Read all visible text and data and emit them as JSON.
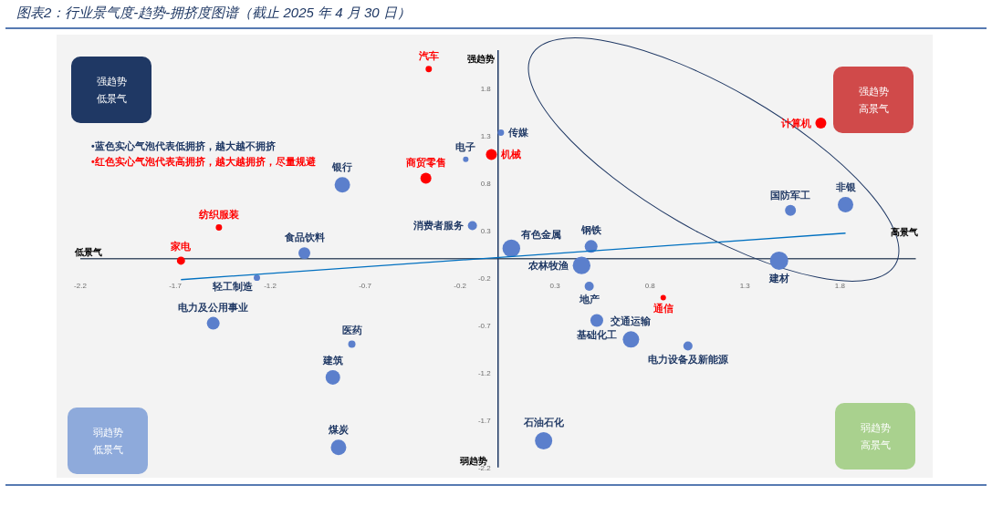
{
  "chart_data": {
    "type": "bubble",
    "title": "图表2：行业景气度-趋势-拥挤度图谱（截止 2025 年 4 月 30 日）",
    "xlim": [
      -2.2,
      2.2
    ],
    "ylim": [
      -2.2,
      2.2
    ],
    "xticks": [
      -2.2,
      -1.7,
      -1.2,
      -0.7,
      -0.2,
      0.3,
      0.8,
      1.3,
      1.8
    ],
    "yticks": [
      -2.2,
      -1.7,
      -1.2,
      -0.7,
      -0.2,
      0.3,
      0.8,
      1.3,
      1.8
    ],
    "grid": false,
    "series": [
      {
        "type": "bubble",
        "color": "#5b7fcc",
        "x": [
          0.015,
          -0.17,
          -0.82,
          -0.135,
          0.07,
          0.49,
          0.44,
          1.48,
          1.54,
          1.83,
          -1.02,
          -1.27,
          -1.5,
          -0.77,
          -0.87,
          -0.84,
          0.48,
          0.52,
          0.7,
          1.0,
          0.24
        ],
        "values": [
          1.33,
          1.05,
          0.78,
          0.35,
          0.11,
          0.13,
          -0.07,
          -0.02,
          0.51,
          0.57,
          0.06,
          -0.2,
          -0.68,
          -0.9,
          -1.25,
          -1.99,
          -0.29,
          -0.65,
          -0.85,
          -0.92,
          -1.92
        ],
        "sizes": [
          0.12,
          0.09,
          0.72,
          0.25,
          0.94,
          0.49,
          0.94,
          1,
          0.36,
          0.72,
          0.42,
          0.12,
          0.49,
          0.16,
          0.64,
          0.72,
          0.25,
          0.49,
          0.81,
          0.25,
          0.9
        ]
      },
      {
        "type": "bubble",
        "color": "#ff0000",
        "x": [
          -0.365,
          -0.035,
          -0.38,
          1.7,
          -1.47,
          -1.67,
          0.87
        ],
        "values": [
          2.0,
          1.1,
          0.85,
          1.43,
          0.33,
          -0.02,
          -0.41
        ],
        "sizes": [
          0.12,
          0.36,
          0.36,
          0.36,
          0.12,
          0.2,
          0.09
        ]
      },
      {
        "type": "line",
        "color": "#0070c0",
        "x": [
          -1.67,
          1.83
        ],
        "values": [
          -0.22,
          0.27
        ]
      }
    ],
    "annotations": [
      "低景气",
      "高景气",
      "强趋势",
      "弱趋势",
      "强趋势低景气",
      "强趋势高景气",
      "弱趋势低景气",
      "弱趋势高景气",
      "•蓝色实心气泡代表低拥挤，越大越不拥挤",
      "•红色实心气泡代表高拥挤，越大越拥挤，尽量规避",
      {
        "text": "传媒",
        "x": 0.015,
        "y": 1.33
      },
      {
        "text": "电子",
        "x": -0.17,
        "y": 1.05
      },
      {
        "text": "银行",
        "x": -0.82,
        "y": 0.78
      },
      {
        "text": "消费者服务",
        "x": -0.135,
        "y": 0.35
      },
      {
        "text": "有色金属",
        "x": 0.07,
        "y": 0.11
      },
      {
        "text": "钢铁",
        "x": 0.49,
        "y": 0.13
      },
      {
        "text": "农林牧渔",
        "x": 0.44,
        "y": -0.07
      },
      {
        "text": "建材",
        "x": 1.48,
        "y": -0.02
      },
      {
        "text": "国防军工",
        "x": 1.54,
        "y": 0.51
      },
      {
        "text": "非银",
        "x": 1.83,
        "y": 0.57
      },
      {
        "text": "食品饮料",
        "x": -1.02,
        "y": 0.06
      },
      {
        "text": "轻工制造",
        "x": -1.27,
        "y": -0.2
      },
      {
        "text": "电力及公用事业",
        "x": -1.5,
        "y": -0.68
      },
      {
        "text": "医药",
        "x": -0.77,
        "y": -0.9
      },
      {
        "text": "建筑",
        "x": -0.87,
        "y": -1.25
      },
      {
        "text": "煤炭",
        "x": -0.84,
        "y": -1.99
      },
      {
        "text": "地产",
        "x": 0.48,
        "y": -0.29
      },
      {
        "text": "基础化工",
        "x": 0.52,
        "y": -0.65
      },
      {
        "text": "交通运输",
        "x": 0.7,
        "y": -0.85
      },
      {
        "text": "电力设备及新能源",
        "x": 1.0,
        "y": -0.92
      },
      {
        "text": "石油石化",
        "x": 0.24,
        "y": -1.92
      },
      {
        "text": "汽车",
        "x": -0.365,
        "y": 2.0
      },
      {
        "text": "机械",
        "x": -0.035,
        "y": 1.1
      },
      {
        "text": "商贸零售",
        "x": -0.38,
        "y": 0.85
      },
      {
        "text": "计算机",
        "x": 1.7,
        "y": 1.43
      },
      {
        "text": "纺织服装",
        "x": -1.47,
        "y": 0.33
      },
      {
        "text": "家电",
        "x": -1.67,
        "y": -0.02
      },
      {
        "text": "通信",
        "x": 0.87,
        "y": -0.41
      }
    ]
  }
}
